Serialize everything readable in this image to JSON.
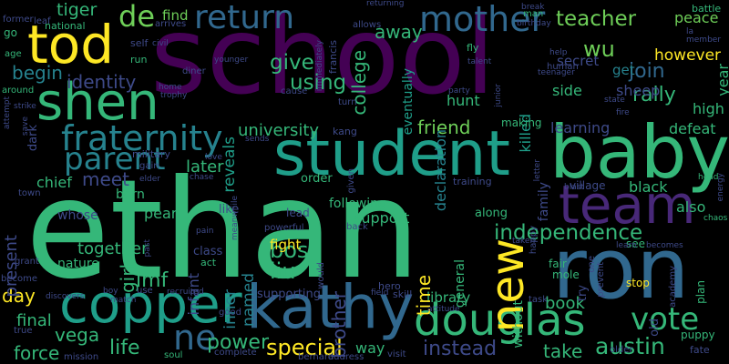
{
  "background": "#000000",
  "palette": {
    "purple": "#440154",
    "violet": "#482878",
    "indigo": "#3e4a89",
    "blue": "#31688e",
    "teal": "#26828e",
    "green": "#1f9e89",
    "mint": "#35b779",
    "lime": "#6ece58",
    "yellow": "#fde725"
  },
  "words": [
    {
      "text": "school",
      "color": "purple"
    },
    {
      "text": "ethan",
      "color": "mint"
    },
    {
      "text": "ron",
      "color": "blue"
    },
    {
      "text": "baby",
      "color": "mint"
    },
    {
      "text": "student",
      "color": "green"
    },
    {
      "text": "kathy",
      "color": "blue"
    },
    {
      "text": "copper",
      "color": "green"
    },
    {
      "text": "tod",
      "color": "yellow"
    },
    {
      "text": "shen",
      "color": "mint"
    },
    {
      "text": "douglas",
      "color": "mint"
    },
    {
      "text": "new",
      "color": "yellow"
    },
    {
      "text": "team",
      "color": "violet"
    },
    {
      "text": "fraternity",
      "color": "teal"
    },
    {
      "text": "parent",
      "color": "teal"
    },
    {
      "text": "return",
      "color": "blue"
    },
    {
      "text": "mother",
      "color": "blue"
    },
    {
      "text": "de",
      "color": "lime"
    },
    {
      "text": "vote",
      "color": "mint"
    },
    {
      "text": "ne",
      "color": "blue"
    },
    {
      "text": "independence",
      "color": "mint"
    },
    {
      "text": "austin",
      "color": "mint"
    },
    {
      "text": "instead",
      "color": "indigo"
    },
    {
      "text": "special",
      "color": "yellow"
    },
    {
      "text": "power",
      "color": "mint"
    },
    {
      "text": "liu",
      "color": "mint"
    },
    {
      "text": "bos",
      "color": "mint"
    },
    {
      "text": "wu",
      "color": "lime"
    },
    {
      "text": "teacher",
      "color": "lime"
    },
    {
      "text": "tiger",
      "color": "mint"
    },
    {
      "text": "away",
      "color": "mint"
    },
    {
      "text": "give",
      "color": "mint"
    },
    {
      "text": "using",
      "color": "mint"
    },
    {
      "text": "college",
      "color": "mint"
    },
    {
      "text": "identity",
      "color": "indigo"
    },
    {
      "text": "begin",
      "color": "teal"
    },
    {
      "text": "join",
      "color": "blue"
    },
    {
      "text": "rally",
      "color": "mint"
    },
    {
      "text": "life",
      "color": "mint"
    },
    {
      "text": "imf",
      "color": "mint"
    },
    {
      "text": "day",
      "color": "yellow"
    },
    {
      "text": "force",
      "color": "mint"
    },
    {
      "text": "vega",
      "color": "mint"
    },
    {
      "text": "final",
      "color": "mint"
    },
    {
      "text": "together",
      "color": "mint"
    },
    {
      "text": "present",
      "color": "indigo"
    },
    {
      "text": "girl",
      "color": "mint"
    },
    {
      "text": "meet",
      "color": "indigo"
    },
    {
      "text": "later",
      "color": "mint"
    },
    {
      "text": "university",
      "color": "mint"
    },
    {
      "text": "friend",
      "color": "lime"
    },
    {
      "text": "support",
      "color": "mint"
    },
    {
      "text": "library",
      "color": "mint"
    },
    {
      "text": "book",
      "color": "mint"
    },
    {
      "text": "take",
      "color": "mint"
    },
    {
      "text": "time",
      "color": "yellow"
    },
    {
      "text": "brother",
      "color": "indigo"
    },
    {
      "text": "inner",
      "color": "teal"
    },
    {
      "text": "named",
      "color": "teal"
    },
    {
      "text": "reveals",
      "color": "green"
    },
    {
      "text": "fight",
      "color": "yellow"
    },
    {
      "text": "learning",
      "color": "indigo"
    },
    {
      "text": "defeat",
      "color": "mint"
    },
    {
      "text": "also",
      "color": "mint"
    },
    {
      "text": "high",
      "color": "mint"
    },
    {
      "text": "side",
      "color": "mint"
    },
    {
      "text": "sheep",
      "color": "indigo"
    },
    {
      "text": "hunt",
      "color": "mint"
    },
    {
      "text": "however",
      "color": "yellow"
    },
    {
      "text": "peace",
      "color": "lime"
    },
    {
      "text": "find",
      "color": "lime"
    },
    {
      "text": "secret",
      "color": "indigo"
    },
    {
      "text": "get",
      "color": "teal"
    },
    {
      "text": "black",
      "color": "mint"
    },
    {
      "text": "declaration",
      "color": "teal"
    },
    {
      "text": "killed",
      "color": "green"
    },
    {
      "text": "eventually",
      "color": "green"
    },
    {
      "text": "chief",
      "color": "mint"
    },
    {
      "text": "pearl",
      "color": "mint"
    },
    {
      "text": "born",
      "color": "mint"
    },
    {
      "text": "infant",
      "color": "indigo"
    },
    {
      "text": "way",
      "color": "mint"
    },
    {
      "text": "whose",
      "color": "indigo"
    },
    {
      "text": "nature",
      "color": "mint"
    },
    {
      "text": "along",
      "color": "mint"
    },
    {
      "text": "without",
      "color": "mint"
    },
    {
      "text": "general",
      "color": "mint"
    },
    {
      "text": "family",
      "color": "indigo"
    },
    {
      "text": "year",
      "color": "mint"
    },
    {
      "text": "old",
      "color": "indigo"
    },
    {
      "text": "try",
      "color": "indigo"
    },
    {
      "text": "class",
      "color": "indigo"
    },
    {
      "text": "supporting",
      "color": "indigo"
    },
    {
      "text": "like",
      "color": "indigo"
    },
    {
      "text": "dark",
      "color": "indigo"
    },
    {
      "text": "military",
      "color": "indigo"
    },
    {
      "text": "kang",
      "color": "indigo"
    },
    {
      "text": "order",
      "color": "mint"
    },
    {
      "text": "following",
      "color": "mint"
    },
    {
      "text": "lead",
      "color": "indigo"
    },
    {
      "text": "hero",
      "color": "indigo"
    },
    {
      "text": "village",
      "color": "indigo"
    },
    {
      "text": "training",
      "color": "indigo"
    },
    {
      "text": "making",
      "color": "mint"
    },
    {
      "text": "fair",
      "color": "mint"
    },
    {
      "text": "mole",
      "color": "mint"
    },
    {
      "text": "see",
      "color": "mint"
    },
    {
      "text": "stop",
      "color": "yellow"
    },
    {
      "text": "plan",
      "color": "mint"
    },
    {
      "text": "puppy",
      "color": "mint"
    },
    {
      "text": "fate",
      "color": "indigo"
    },
    {
      "text": "older",
      "color": "indigo"
    },
    {
      "text": "task",
      "color": "indigo"
    },
    {
      "text": "visit",
      "color": "indigo"
    },
    {
      "text": "bernard",
      "color": "indigo"
    },
    {
      "text": "complete",
      "color": "indigo"
    },
    {
      "text": "soul",
      "color": "mint"
    },
    {
      "text": "mission",
      "color": "indigo"
    },
    {
      "text": "true",
      "color": "indigo"
    },
    {
      "text": "become",
      "color": "indigo"
    },
    {
      "text": "grant",
      "color": "indigo"
    },
    {
      "text": "former",
      "color": "indigo"
    },
    {
      "text": "leaf",
      "color": "indigo"
    },
    {
      "text": "go",
      "color": "mint"
    },
    {
      "text": "national",
      "color": "mint"
    },
    {
      "text": "age",
      "color": "mint"
    },
    {
      "text": "around",
      "color": "mint"
    },
    {
      "text": "attempt",
      "color": "indigo"
    },
    {
      "text": "strike",
      "color": "indigo"
    },
    {
      "text": "save",
      "color": "indigo"
    },
    {
      "text": "town",
      "color": "indigo"
    },
    {
      "text": "elder",
      "color": "indigo"
    },
    {
      "text": "gain",
      "color": "indigo"
    },
    {
      "text": "chase",
      "color": "indigo"
    },
    {
      "text": "meanwhile",
      "color": "indigo"
    },
    {
      "text": "pain",
      "color": "indigo"
    },
    {
      "text": "act",
      "color": "mint"
    },
    {
      "text": "past",
      "color": "indigo"
    },
    {
      "text": "powerful",
      "color": "indigo"
    },
    {
      "text": "boy",
      "color": "indigo"
    },
    {
      "text": "match",
      "color": "indigo"
    },
    {
      "text": "use",
      "color": "indigo"
    },
    {
      "text": "recruited",
      "color": "indigo"
    },
    {
      "text": "good",
      "color": "indigo"
    },
    {
      "text": "discovers",
      "color": "indigo"
    },
    {
      "text": "would",
      "color": "indigo"
    },
    {
      "text": "field",
      "color": "indigo"
    },
    {
      "text": "skill",
      "color": "indigo"
    },
    {
      "text": "attitude",
      "color": "indigo"
    },
    {
      "text": "address",
      "color": "indigo"
    },
    {
      "text": "back",
      "color": "indigo"
    },
    {
      "text": "given",
      "color": "indigo"
    },
    {
      "text": "sends",
      "color": "indigo"
    },
    {
      "text": "love",
      "color": "indigo"
    },
    {
      "text": "cause",
      "color": "indigo"
    },
    {
      "text": "turn",
      "color": "indigo"
    },
    {
      "text": "home",
      "color": "indigo"
    },
    {
      "text": "trophy",
      "color": "indigo"
    },
    {
      "text": "diner",
      "color": "indigo"
    },
    {
      "text": "run",
      "color": "mint"
    },
    {
      "text": "self",
      "color": "indigo"
    },
    {
      "text": "civil",
      "color": "indigo"
    },
    {
      "text": "arrives",
      "color": "indigo"
    },
    {
      "text": "younger",
      "color": "indigo"
    },
    {
      "text": "immediately",
      "color": "indigo"
    },
    {
      "text": "francis",
      "color": "indigo"
    },
    {
      "text": "returning",
      "color": "indigo"
    },
    {
      "text": "allows",
      "color": "indigo"
    },
    {
      "text": "fly",
      "color": "mint"
    },
    {
      "text": "talent",
      "color": "indigo"
    },
    {
      "text": "party",
      "color": "indigo"
    },
    {
      "text": "junior",
      "color": "indigo"
    },
    {
      "text": "break",
      "color": "indigo"
    },
    {
      "text": "man",
      "color": "mint"
    },
    {
      "text": "birthday",
      "color": "indigo"
    },
    {
      "text": "help",
      "color": "indigo"
    },
    {
      "text": "human",
      "color": "indigo"
    },
    {
      "text": "teenager",
      "color": "indigo"
    },
    {
      "text": "state",
      "color": "indigo"
    },
    {
      "text": "fire",
      "color": "indigo"
    },
    {
      "text": "battle",
      "color": "mint"
    },
    {
      "text": "la",
      "color": "indigo"
    },
    {
      "text": "member",
      "color": "indigo"
    },
    {
      "text": "head",
      "color": "mint"
    },
    {
      "text": "blast",
      "color": "indigo"
    },
    {
      "text": "letter",
      "color": "indigo"
    },
    {
      "text": "energy",
      "color": "indigo"
    },
    {
      "text": "chaos",
      "color": "mint"
    },
    {
      "text": "taken",
      "color": "indigo"
    },
    {
      "text": "learn",
      "color": "indigo"
    },
    {
      "text": "becomes",
      "color": "indigo"
    },
    {
      "text": "academy",
      "color": "indigo"
    },
    {
      "text": "prevent",
      "color": "indigo"
    },
    {
      "text": "one",
      "color": "indigo"
    },
    {
      "text": "happy",
      "color": "indigo"
    }
  ]
}
